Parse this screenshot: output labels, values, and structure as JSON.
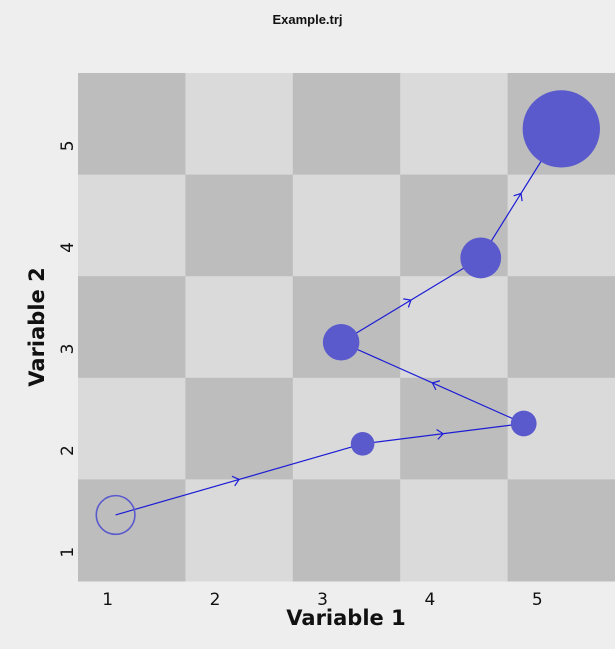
{
  "window": {
    "title": "Example.trj"
  },
  "chart_data": {
    "type": "scatter",
    "title": "",
    "xlabel": "Variable 1",
    "ylabel": "Variable 2",
    "xlim": [
      0.5,
      5.5
    ],
    "ylim": [
      0.5,
      5.5
    ],
    "xticks": [
      "1",
      "2",
      "3",
      "4",
      "5"
    ],
    "yticks": [
      "1",
      "2",
      "3",
      "4",
      "5"
    ],
    "grid": "checkerboard",
    "background_colors": {
      "dark": "#bdbdbd",
      "light": "#dadada"
    },
    "series_color": "#5a5acd",
    "line_color": "#1c1cd6",
    "points": [
      {
        "x": 0.85,
        "y": 1.15,
        "size": 0.18,
        "filled": false
      },
      {
        "x": 3.15,
        "y": 1.85,
        "size": 0.11,
        "filled": true
      },
      {
        "x": 4.65,
        "y": 2.05,
        "size": 0.12,
        "filled": true
      },
      {
        "x": 2.95,
        "y": 2.85,
        "size": 0.17,
        "filled": true
      },
      {
        "x": 4.25,
        "y": 3.68,
        "size": 0.19,
        "filled": true
      },
      {
        "x": 5.0,
        "y": 4.95,
        "size": 0.36,
        "filled": true
      }
    ]
  }
}
